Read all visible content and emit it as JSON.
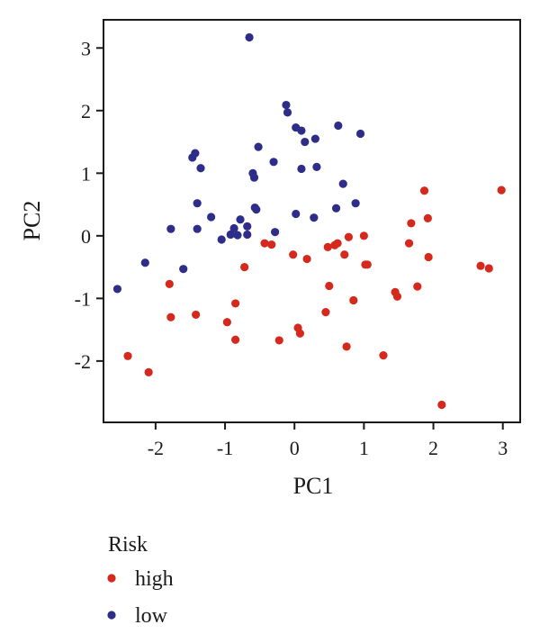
{
  "chart_data": {
    "type": "scatter",
    "xlabel": "PC1",
    "ylabel": "PC2",
    "xlim": [
      -2.75,
      3.25
    ],
    "ylim": [
      -2.98,
      3.45
    ],
    "xticks": [
      -2,
      -1,
      0,
      1,
      2,
      3
    ],
    "yticks": [
      -2,
      -1,
      0,
      1,
      2,
      3
    ],
    "grid": false,
    "legend": {
      "title": "Risk",
      "placement": "bottom-left, below plot"
    },
    "series": [
      {
        "name": "high",
        "color": "#d4291c",
        "points": [
          [
            -2.4,
            -1.92
          ],
          [
            -2.1,
            -2.18
          ],
          [
            -1.8,
            -0.77
          ],
          [
            -1.78,
            -1.3
          ],
          [
            -1.42,
            -1.26
          ],
          [
            -0.97,
            -1.38
          ],
          [
            -0.85,
            -1.08
          ],
          [
            -0.85,
            -1.66
          ],
          [
            -0.72,
            -0.5
          ],
          [
            -0.43,
            -0.12
          ],
          [
            -0.33,
            -0.14
          ],
          [
            -0.22,
            -1.67
          ],
          [
            -0.02,
            -0.3
          ],
          [
            0.05,
            -1.47
          ],
          [
            0.08,
            -1.56
          ],
          [
            0.18,
            -0.37
          ],
          [
            0.45,
            -1.22
          ],
          [
            0.48,
            -0.18
          ],
          [
            0.5,
            -0.8
          ],
          [
            0.58,
            -0.15
          ],
          [
            0.62,
            -0.12
          ],
          [
            0.72,
            -0.3
          ],
          [
            0.75,
            -1.77
          ],
          [
            0.78,
            -0.02
          ],
          [
            0.85,
            -1.03
          ],
          [
            1.0,
            0.0
          ],
          [
            1.02,
            -0.46
          ],
          [
            1.05,
            -0.46
          ],
          [
            1.28,
            -1.91
          ],
          [
            1.45,
            -0.9
          ],
          [
            1.48,
            -0.97
          ],
          [
            1.65,
            -0.12
          ],
          [
            1.68,
            0.2
          ],
          [
            1.77,
            -0.81
          ],
          [
            1.87,
            0.72
          ],
          [
            1.92,
            0.28
          ],
          [
            1.93,
            -0.34
          ],
          [
            2.12,
            -2.7
          ],
          [
            2.68,
            -0.48
          ],
          [
            2.8,
            -0.52
          ],
          [
            2.98,
            0.73
          ]
        ]
      },
      {
        "name": "low",
        "color": "#2e2d89",
        "points": [
          [
            -2.55,
            -0.85
          ],
          [
            -2.15,
            -0.43
          ],
          [
            -1.78,
            0.11
          ],
          [
            -1.6,
            -0.53
          ],
          [
            -1.47,
            1.25
          ],
          [
            -1.43,
            1.32
          ],
          [
            -1.4,
            0.52
          ],
          [
            -1.4,
            0.11
          ],
          [
            -1.35,
            1.08
          ],
          [
            -1.2,
            0.3
          ],
          [
            -1.05,
            -0.06
          ],
          [
            -0.92,
            0.02
          ],
          [
            -0.87,
            0.12
          ],
          [
            -0.82,
            0.01
          ],
          [
            -0.78,
            0.26
          ],
          [
            -0.68,
            0.15
          ],
          [
            -0.68,
            0.02
          ],
          [
            -0.65,
            3.17
          ],
          [
            -0.6,
            1.0
          ],
          [
            -0.58,
            0.93
          ],
          [
            -0.57,
            0.45
          ],
          [
            -0.55,
            0.42
          ],
          [
            -0.52,
            1.42
          ],
          [
            -0.3,
            1.18
          ],
          [
            -0.28,
            0.06
          ],
          [
            -0.12,
            2.09
          ],
          [
            -0.1,
            1.97
          ],
          [
            0.02,
            0.35
          ],
          [
            0.02,
            1.73
          ],
          [
            0.1,
            1.68
          ],
          [
            0.1,
            1.07
          ],
          [
            0.15,
            1.5
          ],
          [
            0.28,
            0.29
          ],
          [
            0.3,
            1.55
          ],
          [
            0.32,
            1.1
          ],
          [
            0.6,
            0.44
          ],
          [
            0.63,
            1.76
          ],
          [
            0.7,
            0.83
          ],
          [
            0.88,
            0.52
          ],
          [
            0.95,
            1.63
          ]
        ]
      }
    ]
  }
}
